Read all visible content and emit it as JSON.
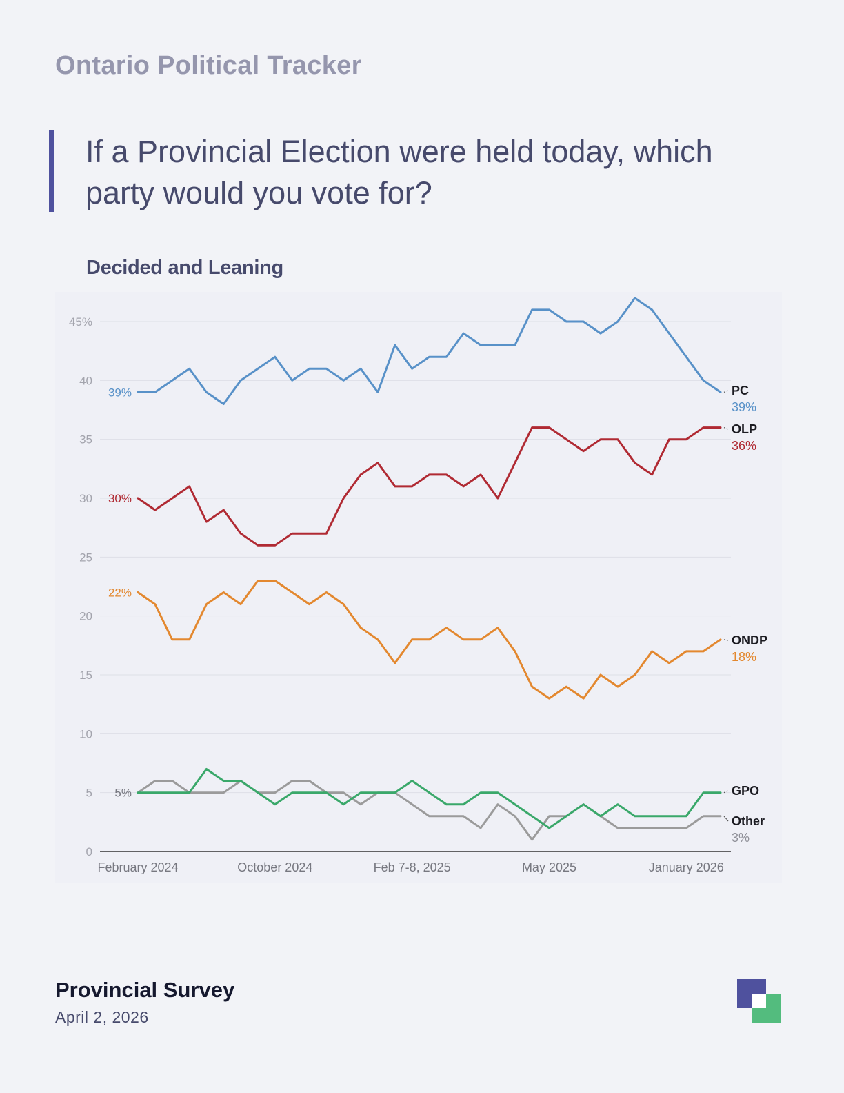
{
  "header": {
    "tracker_title": "Ontario Political Tracker",
    "question": "If a Provincial Election were held today, which party would you vote for?",
    "subtitle": "Decided and Leaning"
  },
  "footer": {
    "survey_name": "Provincial Survey",
    "date": "April 2, 2026"
  },
  "colors": {
    "PC": "#5891c8",
    "OLP": "#b02a33",
    "ONDP": "#e3882f",
    "GPO": "#3aa86a",
    "Other": "#9b9b9b",
    "accent": "#4f519e",
    "logo_green": "#53bc7e"
  },
  "chart_data": {
    "type": "line",
    "title": "Decided and Leaning",
    "xlabel": "",
    "ylabel": "",
    "ylim": [
      0,
      47
    ],
    "yticks": [
      0,
      5,
      10,
      15,
      20,
      25,
      30,
      35,
      40,
      45
    ],
    "ytick_labels": [
      "0",
      "5",
      "10",
      "15",
      "20",
      "25",
      "30",
      "35",
      "40",
      "45%"
    ],
    "x_tick_labels": [
      {
        "index": 0,
        "label": "February 2024"
      },
      {
        "index": 8,
        "label": "October 2024"
      },
      {
        "index": 16,
        "label": "Feb 7-8, 2025"
      },
      {
        "index": 24,
        "label": "May 2025"
      },
      {
        "index": 32,
        "label": "January 2026"
      }
    ],
    "n_points": 35,
    "grid": true,
    "series": [
      {
        "name": "PC",
        "start_label": "39%",
        "end_label": "PC",
        "end_value_label": "39%",
        "values": [
          39,
          39,
          40,
          41,
          39,
          38,
          40,
          41,
          42,
          40,
          41,
          41,
          40,
          41,
          39,
          43,
          41,
          42,
          42,
          44,
          43,
          43,
          43,
          46,
          46,
          45,
          45,
          44,
          45,
          47,
          46,
          44,
          42,
          40,
          39
        ]
      },
      {
        "name": "OLP",
        "start_label": "30%",
        "end_label": "OLP",
        "end_value_label": "36%",
        "values": [
          30,
          29,
          30,
          31,
          28,
          29,
          27,
          26,
          26,
          27,
          27,
          27,
          30,
          32,
          33,
          31,
          31,
          32,
          32,
          31,
          32,
          30,
          33,
          36,
          36,
          35,
          34,
          35,
          35,
          33,
          32,
          35,
          35,
          36,
          36
        ]
      },
      {
        "name": "ONDP",
        "start_label": "22%",
        "end_label": "ONDP",
        "end_value_label": "18%",
        "values": [
          22,
          21,
          18,
          18,
          21,
          22,
          21,
          23,
          23,
          22,
          21,
          22,
          21,
          19,
          18,
          16,
          18,
          18,
          19,
          18,
          18,
          19,
          17,
          14,
          13,
          14,
          13,
          15,
          14,
          15,
          17,
          16,
          17,
          17,
          18
        ]
      },
      {
        "name": "GPO",
        "start_label": "5%",
        "end_label": "GPO",
        "end_value_label": "",
        "values": [
          5,
          5,
          5,
          5,
          7,
          6,
          6,
          5,
          4,
          5,
          5,
          5,
          4,
          5,
          5,
          5,
          6,
          5,
          4,
          4,
          5,
          5,
          4,
          3,
          2,
          3,
          4,
          3,
          4,
          3,
          3,
          3,
          3,
          5,
          5
        ]
      },
      {
        "name": "Other",
        "start_label": "",
        "end_label": "Other",
        "end_value_label": "3%",
        "values": [
          5,
          6,
          6,
          5,
          5,
          5,
          6,
          5,
          5,
          6,
          6,
          5,
          5,
          4,
          5,
          5,
          4,
          3,
          3,
          3,
          2,
          4,
          3,
          1,
          3,
          3,
          4,
          3,
          2,
          2,
          2,
          2,
          2,
          3,
          3
        ]
      }
    ]
  }
}
